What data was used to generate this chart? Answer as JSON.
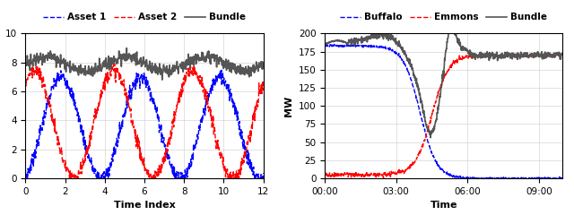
{
  "left": {
    "xlabel": "Time Index",
    "xlim": [
      0,
      12
    ],
    "ylim": [
      0,
      10
    ],
    "yticks": [
      0,
      2,
      4,
      6,
      8,
      10
    ],
    "xticks": [
      0,
      2,
      4,
      6,
      8,
      10,
      12
    ],
    "legend": [
      "Asset 1",
      "Asset 2",
      "Bundle"
    ]
  },
  "right": {
    "xlabel": "Time",
    "ylabel": "MW",
    "ylim": [
      0,
      200
    ],
    "yticks": [
      0,
      25,
      50,
      75,
      100,
      125,
      150,
      175,
      200
    ],
    "xtick_vals": [
      0,
      3,
      6,
      9
    ],
    "xtick_labels": [
      "00:00",
      "03:00",
      "06:00",
      "09:00"
    ],
    "xlim": [
      0,
      10
    ],
    "legend": [
      "Buffalo",
      "Emmons",
      "Bundle"
    ]
  },
  "fig_width": 6.4,
  "fig_height": 2.4
}
